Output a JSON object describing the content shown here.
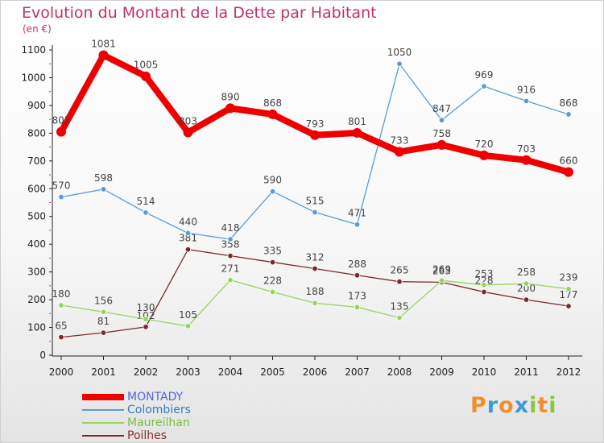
{
  "title": "Evolution du Montant de la Dette par Habitant",
  "unit_label": "(en €)",
  "logo": {
    "text": "Proxiti",
    "letters": [
      {
        "ch": "P",
        "color": "#f0902a"
      },
      {
        "ch": "r",
        "color": "#3e9bd4"
      },
      {
        "ch": "o",
        "color": "#f0902a"
      },
      {
        "ch": "x",
        "color": "#3e9bd4"
      },
      {
        "ch": "i",
        "color": "#8cc63f"
      },
      {
        "ch": "t",
        "color": "#f0902a"
      },
      {
        "ch": "i",
        "color": "#8cc63f"
      }
    ]
  },
  "chart_data": {
    "type": "line",
    "title": "Evolution du Montant de la Dette par Habitant",
    "ylabel": "(en €)",
    "xlabel": "",
    "ylim": [
      0,
      1100
    ],
    "yticks": [
      0,
      100,
      200,
      300,
      400,
      500,
      600,
      700,
      800,
      900,
      1000,
      1100
    ],
    "x": [
      "2000",
      "2001",
      "2002",
      "2003",
      "2004",
      "2005",
      "2006",
      "2007",
      "2008",
      "2009",
      "2010",
      "2011",
      "2012"
    ],
    "grid": false,
    "legend_position": "bottom-left",
    "series": [
      {
        "name": "MONTADY",
        "color": "#ee0000",
        "legend_text_color": "#5566dd",
        "values": [
          805,
          1081,
          1005,
          803,
          890,
          868,
          793,
          801,
          733,
          758,
          720,
          703,
          660
        ]
      },
      {
        "name": "Colombiers",
        "color": "#5b9bd5",
        "legend_text_color": "#3c7ac0",
        "values": [
          570,
          598,
          514,
          440,
          418,
          590,
          515,
          471,
          1050,
          847,
          969,
          916,
          868
        ]
      },
      {
        "name": "Maureilhan",
        "color": "#95d55f",
        "legend_text_color": "#7bbf3e",
        "values": [
          180,
          156,
          130,
          105,
          271,
          228,
          188,
          173,
          135,
          269,
          253,
          258,
          239
        ]
      },
      {
        "name": "Poilhes",
        "color": "#7a2a2a",
        "legend_text_color": "#8b2d2d",
        "values": [
          65,
          81,
          102,
          381,
          358,
          335,
          312,
          288,
          265,
          263,
          228,
          200,
          177
        ]
      }
    ]
  }
}
